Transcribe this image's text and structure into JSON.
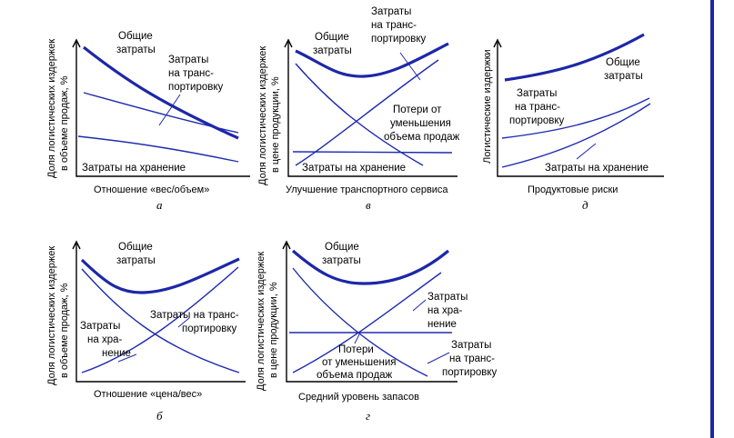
{
  "right_bar_color": "#1c27a8",
  "chart_data": [
    {
      "id": "a",
      "type": "line",
      "subtitle": "а",
      "ylabel": [
        "Доля логистических издержек",
        "в объеме продаж, %"
      ],
      "xlabel": "Отношение «вес/объем»",
      "series": [
        {
          "labels": [
            "Общие",
            "затраты"
          ],
          "style": "thick",
          "points": [
            [
              0,
              0.95
            ],
            [
              0.25,
              0.78
            ],
            [
              0.5,
              0.6
            ],
            [
              0.75,
              0.45
            ],
            [
              1,
              0.36
            ]
          ]
        },
        {
          "labels": [
            "Затраты",
            "на транс-",
            "портировку"
          ],
          "style": "thin",
          "points": [
            [
              0,
              0.62
            ],
            [
              0.25,
              0.55
            ],
            [
              0.5,
              0.48
            ],
            [
              0.75,
              0.43
            ],
            [
              1,
              0.38
            ]
          ]
        },
        {
          "labels": [
            "Затраты на хранение"
          ],
          "style": "thin",
          "points": [
            [
              0,
              0.36
            ],
            [
              0.25,
              0.32
            ],
            [
              0.5,
              0.28
            ],
            [
              0.75,
              0.23
            ],
            [
              1,
              0.16
            ]
          ]
        }
      ]
    },
    {
      "id": "v",
      "type": "line",
      "subtitle": "в",
      "ylabel": [
        "Доля логистических издержек",
        "в цене продукции, %"
      ],
      "xlabel": "Улучшение транспортного сервиса",
      "series": [
        {
          "labels": [
            "Общие",
            "затраты"
          ],
          "style": "thick",
          "points": [
            [
              0,
              0.9
            ],
            [
              0.2,
              0.73
            ],
            [
              0.4,
              0.67
            ],
            [
              0.6,
              0.72
            ],
            [
              0.8,
              0.82
            ],
            [
              1,
              0.92
            ]
          ]
        },
        {
          "labels": [
            "Затраты",
            "на транс-",
            "портировку"
          ],
          "style": "thin",
          "points": [
            [
              0,
              0.82
            ],
            [
              0.25,
              0.6
            ],
            [
              0.5,
              0.4
            ],
            [
              0.75,
              0.2
            ],
            [
              0.85,
              0.08
            ]
          ]
        },
        {
          "labels": [
            "Потери от",
            "уменьшения",
            "объема продаж"
          ],
          "style": "thin",
          "points": [
            [
              0,
              0.1
            ],
            [
              0.25,
              0.3
            ],
            [
              0.5,
              0.5
            ],
            [
              0.75,
              0.7
            ],
            [
              0.97,
              0.85
            ]
          ]
        },
        {
          "labels": [
            "Затраты на хранение"
          ],
          "style": "thin",
          "points": [
            [
              0,
              0.2
            ],
            [
              1,
              0.21
            ]
          ]
        }
      ]
    },
    {
      "id": "d",
      "type": "line",
      "subtitle": "д",
      "ylabel": [
        "Логистические издержки"
      ],
      "xlabel": "Продуктовые риски",
      "series": [
        {
          "labels": [
            "Общие",
            "затраты"
          ],
          "style": "thick",
          "points": [
            [
              0,
              0.74
            ],
            [
              0.3,
              0.79
            ],
            [
              0.6,
              0.86
            ],
            [
              1,
              1.0
            ]
          ]
        },
        {
          "labels": [
            "Затраты",
            "на транс-",
            "портировку"
          ],
          "style": "thin",
          "points": [
            [
              0,
              0.32
            ],
            [
              0.35,
              0.37
            ],
            [
              0.65,
              0.44
            ],
            [
              1,
              0.56
            ]
          ]
        },
        {
          "labels": [
            "Затраты на хранение"
          ],
          "style": "thin",
          "points": [
            [
              0,
              0.02
            ],
            [
              0.35,
              0.14
            ],
            [
              0.65,
              0.31
            ],
            [
              1,
              0.6
            ]
          ]
        }
      ]
    },
    {
      "id": "b",
      "type": "line",
      "subtitle": "б",
      "ylabel": [
        "Доля логистических издержек",
        "в объеме продаж, %"
      ],
      "xlabel": "Отношение «цена/вес»",
      "series": [
        {
          "labels": [
            "Общие",
            "затраты"
          ],
          "style": "thick",
          "points": [
            [
              0,
              0.95
            ],
            [
              0.18,
              0.76
            ],
            [
              0.35,
              0.68
            ],
            [
              0.55,
              0.7
            ],
            [
              0.75,
              0.8
            ],
            [
              1,
              0.96
            ]
          ]
        },
        {
          "labels": [
            "Затраты",
            "на хра-",
            "нение"
          ],
          "style": "thin",
          "points": [
            [
              0,
              0.88
            ],
            [
              0.25,
              0.62
            ],
            [
              0.5,
              0.38
            ],
            [
              0.75,
              0.2
            ],
            [
              1,
              0.08
            ]
          ]
        },
        {
          "labels": [
            "Затраты на транс-",
            "портировку"
          ],
          "style": "thin",
          "points": [
            [
              0,
              0.04
            ],
            [
              0.25,
              0.18
            ],
            [
              0.5,
              0.36
            ],
            [
              0.75,
              0.58
            ],
            [
              1,
              0.82
            ]
          ]
        }
      ]
    },
    {
      "id": "g",
      "type": "line",
      "subtitle": "г",
      "ylabel": [
        "Доля логистических издержек",
        "в цене продукции, %"
      ],
      "xlabel": "Средний уровень запасов",
      "series": [
        {
          "labels": [
            "Общие",
            "затраты"
          ],
          "style": "thick",
          "points": [
            [
              0,
              0.93
            ],
            [
              0.2,
              0.76
            ],
            [
              0.4,
              0.7
            ],
            [
              0.6,
              0.73
            ],
            [
              0.8,
              0.85
            ],
            [
              1,
              0.98
            ]
          ]
        },
        {
          "labels": [
            "Затраты",
            "на хра-",
            "нение"
          ],
          "style": "thin",
          "points": [
            [
              0,
              0.04
            ],
            [
              0.25,
              0.2
            ],
            [
              0.5,
              0.42
            ],
            [
              0.75,
              0.63
            ],
            [
              0.95,
              0.82
            ]
          ]
        },
        {
          "labels": [
            "Затраты",
            "на транс-",
            "портировку"
          ],
          "style": "thin",
          "points": [
            [
              0,
              0.86
            ],
            [
              0.25,
              0.6
            ],
            [
              0.5,
              0.36
            ],
            [
              0.75,
              0.15
            ],
            [
              0.85,
              0.04
            ]
          ]
        },
        {
          "labels": [
            "Потери",
            "от уменьшения",
            "объема продаж"
          ],
          "style": "thin",
          "points": [
            [
              0,
              0.44
            ],
            [
              1,
              0.44
            ]
          ]
        }
      ]
    }
  ]
}
